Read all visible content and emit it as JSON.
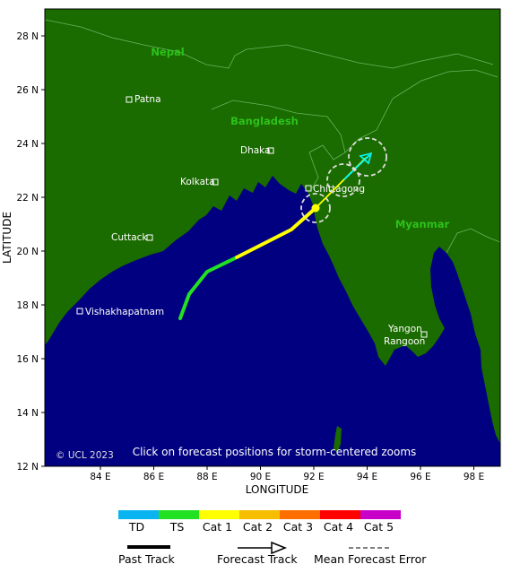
{
  "map": {
    "lat_labels": [
      "28 N",
      "26 N",
      "24 N",
      "22 N",
      "20 N",
      "18 N",
      "16 N",
      "14 N",
      "12 N"
    ],
    "lon_labels": [
      "84 E",
      "86 E",
      "88 E",
      "90 E",
      "92 E",
      "94 E",
      "96 E",
      "98 E"
    ],
    "xlabel": "LONGITUDE",
    "ylabel": "LATITUDE",
    "countries": [
      "Nepal",
      "Bangladesh",
      "Myanmar"
    ],
    "cities": [
      "Patna",
      "Dhaka",
      "Kolkata",
      "Chittagong",
      "Cuttack",
      "Vishakhapatnam",
      "Yangon",
      "Rangoon"
    ],
    "copyright": "© UCL 2023",
    "notice": "Click on forecast positions for storm-centered zooms",
    "colors": {
      "land": "#1a6b00",
      "sea": "#000080",
      "country_label": "#2dc21b",
      "ts": "#22e022",
      "cat1": "#ffff00",
      "forecast": "#00ffff"
    }
  },
  "legend": {
    "categories": [
      {
        "label": "TD",
        "color": "#0ab4f0"
      },
      {
        "label": "TS",
        "color": "#22e022"
      },
      {
        "label": "Cat 1",
        "color": "#ffff00"
      },
      {
        "label": "Cat 2",
        "color": "#f7be00"
      },
      {
        "label": "Cat 3",
        "color": "#ff6f00"
      },
      {
        "label": "Cat 4",
        "color": "#ff0000"
      },
      {
        "label": "Cat 5",
        "color": "#c800c8"
      }
    ],
    "past_track": "Past Track",
    "forecast_track": "Forecast Track",
    "error": "Mean Forecast Error"
  }
}
